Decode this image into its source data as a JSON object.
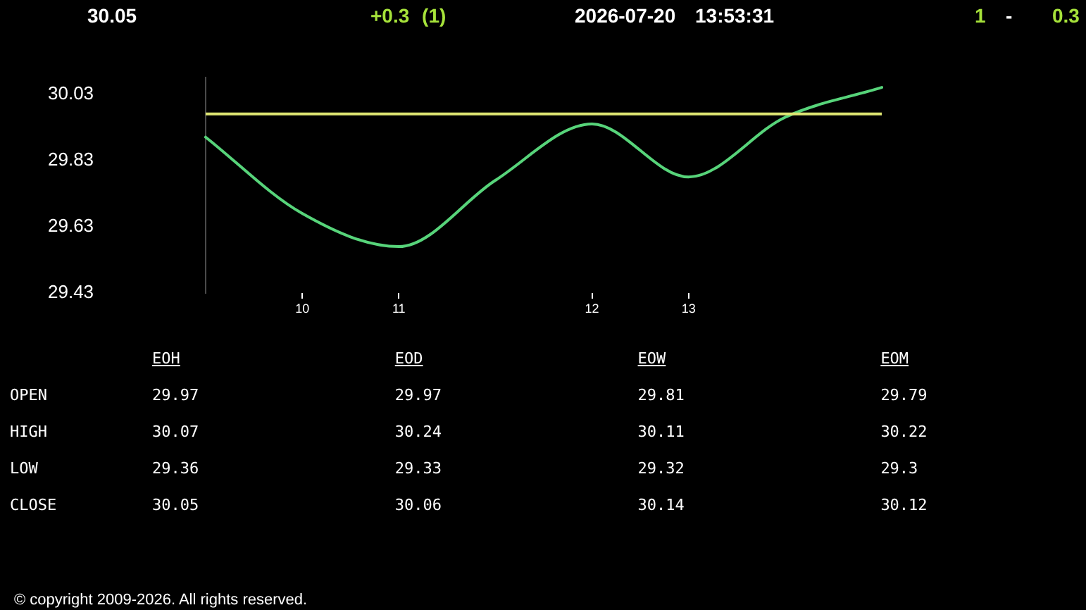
{
  "chart_data": [
    {
      "type": "line",
      "categories": [
        null,
        "10",
        "11",
        null,
        "12",
        "13",
        null,
        null
      ],
      "values": [
        29.9,
        29.67,
        29.57,
        29.77,
        29.94,
        29.78,
        29.96,
        30.05
      ],
      "color": "#57d47a",
      "marker": "none",
      "ylim": [
        29.43,
        30.08
      ],
      "yticks": [
        29.43,
        29.63,
        29.83,
        30.03
      ],
      "ref_lines": [
        {
          "axis": "y",
          "value": 29.97,
          "color": "#dde572"
        }
      ],
      "annotations": [
        "30.05",
        "+0.3 (1)",
        "2026-07-20 13:53:31",
        "1",
        "-",
        "0.3",
        "© copyright 2009-2026. All rights reserved."
      ]
    },
    {
      "type": "other",
      "categories": [
        "EOH",
        "EOD",
        "EOW",
        "EOM"
      ],
      "y_categories": [
        "OPEN",
        "HIGH",
        "LOW",
        "CLOSE"
      ],
      "cell_labels": [
        [
          "29.97",
          "29.97",
          "29.81",
          "29.79"
        ],
        [
          "30.07",
          "30.24",
          "30.11",
          "30.22"
        ],
        [
          "29.36",
          "29.33",
          "29.32",
          "29.3"
        ],
        [
          "30.05",
          "30.06",
          "30.14",
          "30.12"
        ]
      ]
    }
  ]
}
